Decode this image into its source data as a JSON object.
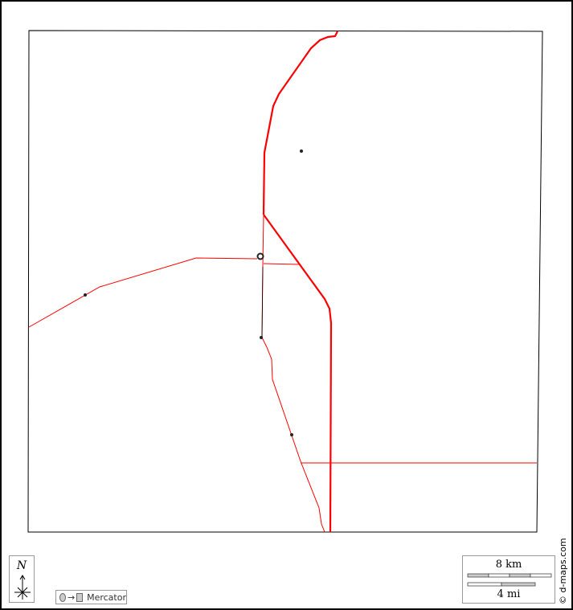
{
  "map": {
    "road_color": "#ff0000",
    "north_label": "N",
    "projection": {
      "label": "Mercator",
      "arrow": "→"
    },
    "scale": {
      "km_label": "8 km",
      "mi_label": "4 mi"
    },
    "credit": "© d-maps.com"
  }
}
